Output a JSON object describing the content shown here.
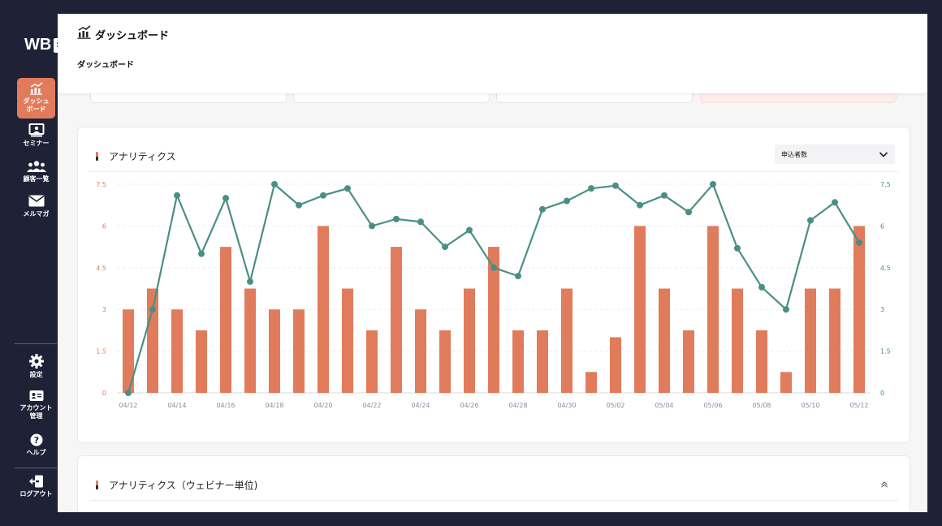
{
  "app": {
    "logo": "WB",
    "collapse_icon": "»"
  },
  "sidebar": {
    "items": [
      {
        "label": "ダッシュ\nボード",
        "icon": "chart-icon"
      },
      {
        "label": "セミナー",
        "icon": "presentation-icon"
      },
      {
        "label": "顧客一覧",
        "icon": "users-icon"
      },
      {
        "label": "メルマガ",
        "icon": "mail-icon"
      },
      {
        "label": "設定",
        "icon": "gear-icon"
      },
      {
        "label": "アカウント\n管理",
        "icon": "id-card-icon"
      },
      {
        "label": "ヘルプ",
        "icon": "help-icon"
      },
      {
        "label": "ログアウト",
        "icon": "logout-icon"
      }
    ]
  },
  "header": {
    "title": "ダッシュボード",
    "breadcrumb": "ダッシュボード"
  },
  "analytics": {
    "title": "アナリティクス",
    "select_value": "申込者数"
  },
  "webinar_analytics": {
    "title": "アナリティクス（ウェビナー単位)"
  },
  "colors": {
    "accent": "#e07c5c",
    "line": "#4a8f86",
    "sidebar_bg": "#1f2236"
  },
  "chart_data": {
    "type": "bar+line",
    "categories": [
      "04/12",
      "04/13",
      "04/14",
      "04/15",
      "04/16",
      "04/17",
      "04/18",
      "04/19",
      "04/20",
      "04/21",
      "04/22",
      "04/23",
      "04/24",
      "04/25",
      "04/26",
      "04/27",
      "04/28",
      "04/29",
      "04/30",
      "05/01",
      "05/02",
      "05/03",
      "05/04",
      "05/05",
      "05/06",
      "05/07",
      "05/08",
      "05/09",
      "05/10",
      "05/11",
      "05/12"
    ],
    "x_tick_labels": [
      "04/12",
      "04/14",
      "04/16",
      "04/18",
      "04/20",
      "04/22",
      "04/24",
      "04/26",
      "04/28",
      "04/30",
      "05/02",
      "05/04",
      "05/06",
      "05/08",
      "05/10",
      "05/12"
    ],
    "y_ticks": [
      "0",
      "1.5",
      "3",
      "4.5",
      "6",
      "7.5"
    ],
    "ylim": [
      0,
      7.5
    ],
    "series": [
      {
        "type": "bar",
        "values": [
          3,
          3.75,
          3,
          2.25,
          5.25,
          3.75,
          3,
          3,
          6,
          3.75,
          2.25,
          5.25,
          3,
          2.25,
          3.75,
          5.25,
          2.25,
          2.25,
          3.75,
          0.75,
          2,
          6,
          3.75,
          2.25,
          6,
          3.75,
          2.25,
          0.75,
          3.75,
          3.75,
          6
        ]
      },
      {
        "type": "line",
        "values": [
          0,
          3,
          7.1,
          5,
          7,
          4,
          7.5,
          6.75,
          7.1,
          7.35,
          6,
          6.25,
          6.15,
          5.25,
          5.85,
          4.5,
          4.2,
          6.6,
          6.9,
          7.35,
          7.45,
          6.75,
          7.1,
          6.5,
          7.5,
          5.2,
          3.8,
          3,
          6.2,
          6.85,
          5.4
        ]
      }
    ],
    "grid": true
  }
}
